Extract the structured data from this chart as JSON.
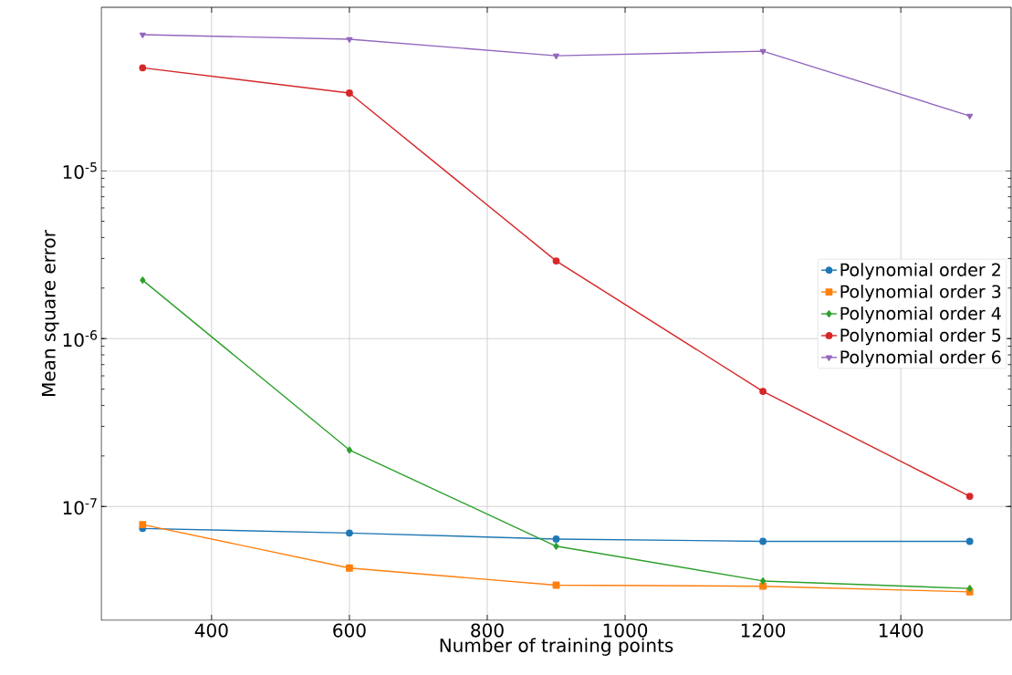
{
  "chart_data": {
    "type": "line",
    "xlabel": "Number of training points",
    "ylabel": "Mean square error",
    "x": [
      300,
      600,
      900,
      1200,
      1500
    ],
    "series": [
      {
        "name": "Polynomial order 2",
        "color": "#1f77b4",
        "marker": "circle",
        "values": [
          7.4e-08,
          6.95e-08,
          6.4e-08,
          6.2e-08,
          6.2e-08
        ]
      },
      {
        "name": "Polynomial order 3",
        "color": "#ff7f0e",
        "marker": "square",
        "values": [
          7.8e-08,
          4.3e-08,
          3.4e-08,
          3.35e-08,
          3.1e-08
        ]
      },
      {
        "name": "Polynomial order 4",
        "color": "#2ca02c",
        "marker": "diamond",
        "values": [
          2.23e-06,
          2.17e-07,
          5.8e-08,
          3.6e-08,
          3.25e-08
        ]
      },
      {
        "name": "Polynomial order 5",
        "color": "#d62728",
        "marker": "circle",
        "values": [
          4.1e-05,
          2.9e-05,
          2.9e-06,
          4.85e-07,
          1.15e-07
        ]
      },
      {
        "name": "Polynomial order 6",
        "color": "#9467bd",
        "marker": "triangle",
        "values": [
          6.46e-05,
          6.07e-05,
          4.84e-05,
          5.15e-05,
          2.12e-05
        ]
      }
    ],
    "log": "y",
    "xlim": [
      240,
      1560
    ],
    "ylim": [
      2.1e-08,
      9.4e-05
    ],
    "xticks": [
      400,
      600,
      800,
      1000,
      1200,
      1400
    ],
    "yticks": [
      {
        "value": 1e-07,
        "label": "10$^{-7}$"
      },
      {
        "value": 1e-06,
        "label": "10$^{-6}$"
      },
      {
        "value": 1e-05,
        "label": "10$^{-5}$"
      }
    ],
    "grid": true,
    "legend": "right",
    "line_style": "solid"
  }
}
